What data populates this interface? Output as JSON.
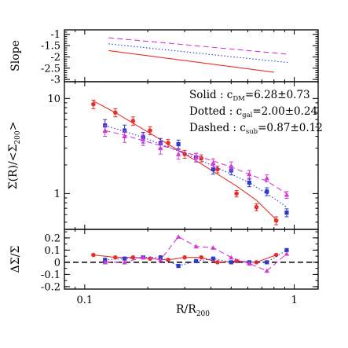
{
  "chart_data": [
    {
      "type": "line",
      "panel": "top",
      "ylabel": "Slope",
      "xscale": "log",
      "xlim": [
        0.08,
        1.3
      ],
      "ylim": [
        -3.1,
        -0.8
      ],
      "yticks": [
        -1,
        -1.5,
        -2,
        -2.5,
        -3
      ],
      "ytick_labels": [
        "-1",
        "-1.5",
        "-2",
        "-2.5",
        "-3"
      ],
      "series": [
        {
          "style": "solid",
          "color": "#e8302a",
          "points": [
            [
              0.13,
              -1.72
            ],
            [
              0.8,
              -2.68
            ]
          ]
        },
        {
          "style": "dotted",
          "color": "#2a3ad0",
          "points": [
            [
              0.13,
              -1.42
            ],
            [
              0.93,
              -2.25
            ]
          ]
        },
        {
          "style": "dashed",
          "color": "#d63ad6",
          "points": [
            [
              0.13,
              -1.15
            ],
            [
              0.93,
              -1.88
            ]
          ]
        }
      ]
    },
    {
      "type": "scatter",
      "panel": "middle",
      "ylabel": "Σ(R)/<Σ200>",
      "xscale": "log",
      "yscale": "log",
      "xlim": [
        0.08,
        1.3
      ],
      "ylim": [
        0.42,
        15
      ],
      "yticks": [
        1,
        10
      ],
      "ytick_labels": [
        "1",
        "10"
      ],
      "annotations": [
        {
          "label": "Solid : c",
          "sub": "DM",
          "value": "=6.28±0.73"
        },
        {
          "label": "Dotted : c",
          "sub": "gal",
          "value": "=2.00±0.24"
        },
        {
          "label": "Dashed : c",
          "sub": "sub",
          "value": "=0.87±0.12"
        }
      ],
      "series": [
        {
          "style": "solid",
          "color": "#e8302a",
          "marker": "circle",
          "x": [
            0.11,
            0.14,
            0.17,
            0.205,
            0.25,
            0.3,
            0.36,
            0.43,
            0.53,
            0.66,
            0.82
          ],
          "y": [
            8.7,
            7.1,
            5.8,
            4.6,
            3.4,
            2.6,
            2.35,
            1.8,
            1.0,
            0.72,
            0.52
          ],
          "err": [
            0.9,
            0.7,
            0.6,
            0.45,
            0.3,
            0.25,
            0.2,
            0.15,
            0.08,
            0.06,
            0.05
          ],
          "fit_y": [
            9.4,
            7.1,
            5.5,
            4.3,
            3.3,
            2.6,
            2.05,
            1.6,
            1.2,
            0.85,
            0.53
          ]
        },
        {
          "style": "dotted",
          "color": "#2a3ad0",
          "marker": "square",
          "x": [
            0.125,
            0.155,
            0.19,
            0.23,
            0.28,
            0.34,
            0.41,
            0.5,
            0.61,
            0.74,
            0.92
          ],
          "y": [
            5.2,
            4.6,
            3.9,
            3.4,
            3.3,
            2.4,
            1.8,
            1.75,
            1.3,
            1.05,
            0.63
          ],
          "err": [
            0.8,
            0.65,
            0.5,
            0.4,
            0.35,
            0.25,
            0.2,
            0.18,
            0.12,
            0.1,
            0.06
          ],
          "fit_y": [
            5.2,
            4.5,
            3.9,
            3.3,
            2.8,
            2.35,
            1.95,
            1.6,
            1.3,
            1.0,
            0.72
          ]
        },
        {
          "style": "dashed",
          "color": "#d63ad6",
          "marker": "triangle",
          "x": [
            0.125,
            0.155,
            0.19,
            0.23,
            0.28,
            0.34,
            0.41,
            0.5,
            0.61,
            0.74,
            0.92
          ],
          "y": [
            4.6,
            4.0,
            3.7,
            3.0,
            2.6,
            2.4,
            2.1,
            1.95,
            1.6,
            1.45,
            0.97
          ],
          "err": [
            0.6,
            0.55,
            0.5,
            0.4,
            0.3,
            0.25,
            0.22,
            0.2,
            0.15,
            0.12,
            0.08
          ],
          "fit_y": [
            4.6,
            4.1,
            3.6,
            3.2,
            2.85,
            2.5,
            2.2,
            1.9,
            1.6,
            1.35,
            1.0
          ]
        }
      ]
    },
    {
      "type": "scatter",
      "panel": "bottom",
      "ylabel": "ΔΣ/Σ",
      "xlabel": "R/R",
      "xlabel_sub": "200",
      "xscale": "log",
      "xlim": [
        0.08,
        1.3
      ],
      "ylim": [
        -0.22,
        0.27
      ],
      "xticks": [
        0.1,
        1
      ],
      "xtick_labels": [
        "0.1",
        "1"
      ],
      "yticks": [
        0.2,
        0.1,
        0,
        -0.1,
        -0.2
      ],
      "ytick_labels": [
        "0.2",
        "0.1",
        "0",
        "-0.1",
        "-0.2"
      ],
      "reference_line": 0,
      "series": [
        {
          "style": "solid",
          "color": "#e8302a",
          "marker": "circle",
          "x": [
            0.11,
            0.14,
            0.17,
            0.205,
            0.25,
            0.3,
            0.36,
            0.43,
            0.53,
            0.66,
            0.82
          ],
          "y": [
            0.06,
            0.04,
            0.04,
            0.03,
            0.02,
            0.04,
            0.04,
            0.0,
            0.01,
            0.0,
            0.06
          ]
        },
        {
          "style": "dotted",
          "color": "#2a3ad0",
          "marker": "square",
          "x": [
            0.125,
            0.155,
            0.19,
            0.23,
            0.28,
            0.34,
            0.41,
            0.5,
            0.61,
            0.74,
            0.92
          ],
          "y": [
            0.02,
            0.03,
            0.04,
            0.04,
            -0.03,
            0.01,
            0.03,
            0.0,
            0.0,
            0.0,
            0.1
          ]
        },
        {
          "style": "dashed",
          "color": "#d63ad6",
          "marker": "triangle",
          "x": [
            0.125,
            0.155,
            0.19,
            0.23,
            0.28,
            0.34,
            0.41,
            0.5,
            0.61,
            0.74,
            0.92
          ],
          "y": [
            0.0,
            0.0,
            0.04,
            0.02,
            0.21,
            0.13,
            0.12,
            0.04,
            -0.01,
            -0.07,
            0.07
          ]
        }
      ]
    }
  ]
}
